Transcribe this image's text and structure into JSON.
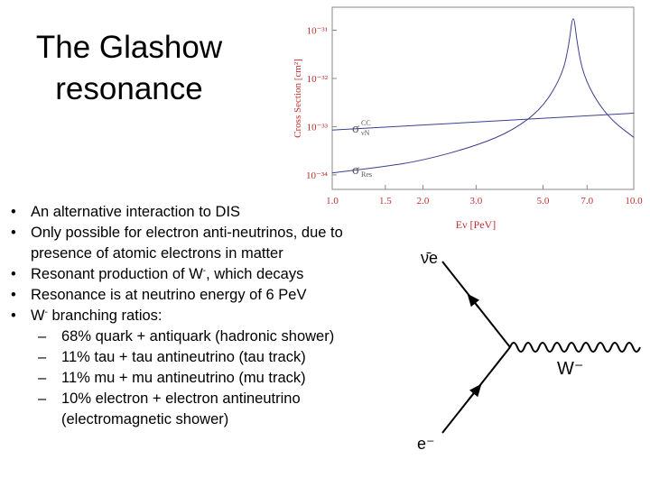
{
  "title": {
    "line1": "The Glashow",
    "line2": "resonance"
  },
  "bullets": [
    {
      "text": "An alternative interaction to DIS"
    },
    {
      "text": "Only possible for electron anti-neutrinos, due to presence of atomic electrons in matter"
    },
    {
      "text": "Resonant production of W",
      "sup": "-",
      "after": ", which decays"
    },
    {
      "text": "Resonance is at neutrino energy of 6 PeV"
    },
    {
      "text": "W",
      "sup": "-",
      "after": " branching ratios:"
    }
  ],
  "sub_bullets": [
    "68% quark + antiquark (hadronic shower)",
    "11% tau + tau antineutrino (tau track)",
    "11% mu + mu antineutrino (mu track)",
    "10% electron + electron antineutrino (electromagnetic shower)"
  ],
  "chart_data": {
    "type": "line",
    "xlabel": "Eν [PeV]",
    "ylabel": "Cross Section [cm²]",
    "x_scale": "log",
    "y_scale": "log",
    "xlim": [
      1.0,
      10.0
    ],
    "ylim": [
      5e-35,
      3e-31
    ],
    "x_ticks": [
      "1.0",
      "1.5",
      "2.0",
      "3.0",
      "5.0",
      "7.0",
      "10.0"
    ],
    "y_ticks": [
      "10⁻³¹",
      "10⁻³²",
      "10⁻³³",
      "10⁻³⁴"
    ],
    "grid": false,
    "series": [
      {
        "name": "σ_Res",
        "label_main": "σ",
        "label_sub": "Res",
        "x": [
          1.0,
          1.5,
          2.0,
          3.0,
          4.0,
          5.0,
          5.8,
          6.1,
          6.3,
          6.5,
          6.8,
          7.5,
          8.5,
          10.0
        ],
        "y": [
          1.1e-34,
          1.5e-34,
          2e-34,
          4e-34,
          8.5e-34,
          2.5e-33,
          1.2e-32,
          5e-32,
          2.6e-31,
          5e-32,
          1.2e-32,
          3.5e-33,
          1.3e-33,
          6e-34
        ]
      },
      {
        "name": "σ_νN^CC",
        "label_main": "σ",
        "label_sub": "νN",
        "label_sup": "CC",
        "x": [
          1.0,
          10.0
        ],
        "y": [
          8.5e-34,
          1.9e-33
        ]
      }
    ],
    "colors": {
      "curve": "#3b3f8f",
      "axis_text": "#c03030",
      "frame": "#888888"
    }
  },
  "diagram": {
    "antineutrino_label": "ν̄e",
    "boson_label": "W⁻",
    "electron_label": "e⁻"
  }
}
